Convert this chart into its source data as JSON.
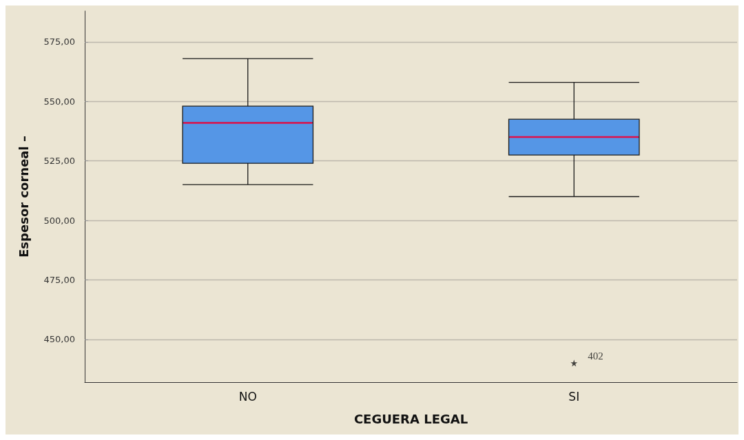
{
  "chart_data": {
    "type": "box",
    "xlabel": "CEGUERA LEGAL",
    "ylabel": "Espesor corneal –",
    "categories": [
      "NO",
      "SI"
    ],
    "series": [
      {
        "color": "#5596e6",
        "boxes": [
          {
            "low": 515,
            "q1": 524,
            "median": 541,
            "q3": 548,
            "high": 568
          },
          {
            "low": 510,
            "q1": 527.5,
            "median": 535,
            "q3": 542.5,
            "high": 558,
            "outliers": [
              440
            ]
          }
        ]
      }
    ],
    "ylim": [
      432,
      588
    ],
    "yticks": [
      {
        "value": 450,
        "label": "450,00"
      },
      {
        "value": 475,
        "label": "475,00"
      },
      {
        "value": 500,
        "label": "500,00"
      },
      {
        "value": 525,
        "label": "525,00"
      },
      {
        "value": 550,
        "label": "550,00"
      },
      {
        "value": 575,
        "label": "575,00"
      }
    ],
    "grid": "y",
    "marker": "star",
    "annotations": [
      "402"
    ]
  }
}
